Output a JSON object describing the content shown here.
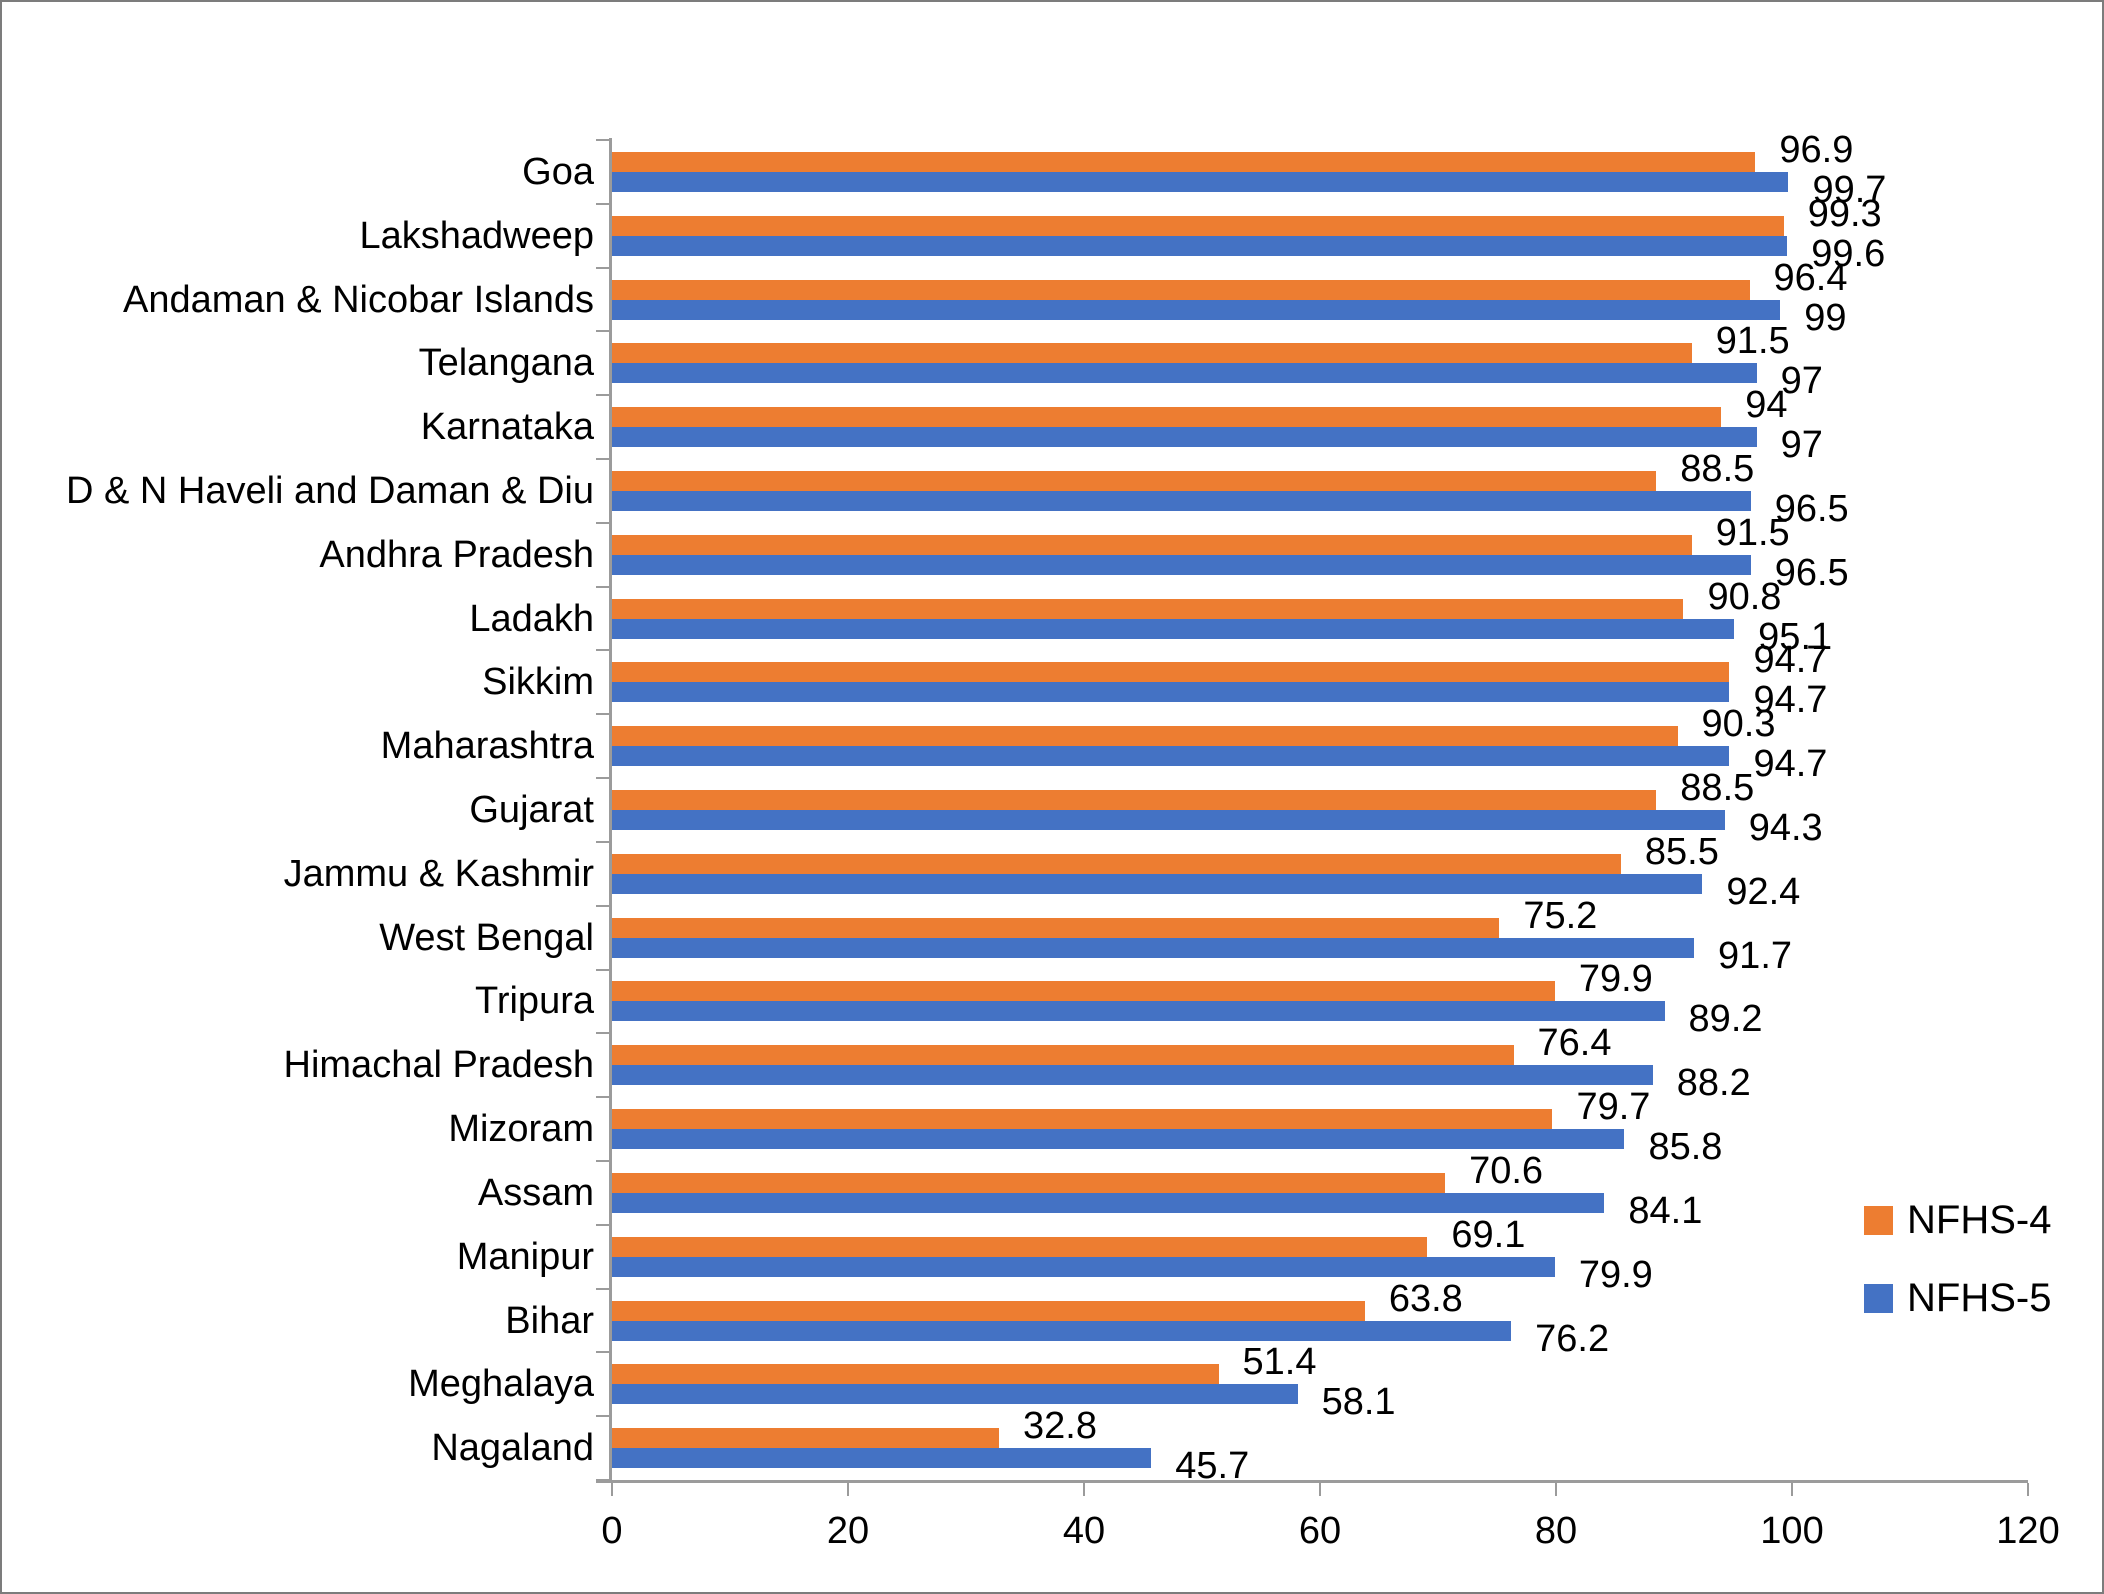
{
  "chart_data": {
    "type": "bar",
    "orientation": "horizontal",
    "title": "",
    "xlabel": "",
    "ylabel": "",
    "grid": false,
    "categories": [
      "Goa",
      "Lakshadweep",
      "Andaman & Nicobar Islands",
      "Telangana",
      "Karnataka",
      "D & N Haveli and Daman & Diu",
      "Andhra Pradesh",
      "Ladakh",
      "Sikkim",
      "Maharashtra",
      "Gujarat",
      "Jammu & Kashmir",
      "West Bengal",
      "Tripura",
      "Himachal Pradesh",
      "Mizoram",
      "Assam",
      "Manipur",
      "Bihar",
      "Meghalaya",
      "Nagaland"
    ],
    "series": [
      {
        "name": "NFHS-4",
        "color": "#ED7D31",
        "values": [
          96.9,
          99.3,
          96.4,
          91.5,
          94,
          88.5,
          91.5,
          90.8,
          94.7,
          90.3,
          88.5,
          85.5,
          75.2,
          79.9,
          76.4,
          79.7,
          70.6,
          69.1,
          63.8,
          51.4,
          32.8
        ]
      },
      {
        "name": "NFHS-5",
        "color": "#4472C4",
        "values": [
          99.7,
          99.6,
          99,
          97,
          97,
          96.5,
          96.5,
          95.1,
          94.7,
          94.7,
          94.3,
          92.4,
          91.7,
          89.2,
          88.2,
          85.8,
          84.1,
          79.9,
          76.2,
          58.1,
          45.7
        ]
      }
    ],
    "x_axis": {
      "min": 0,
      "max": 120,
      "tick_step": 20,
      "ticks": [
        0,
        20,
        40,
        60,
        80,
        100,
        120
      ]
    },
    "legend": {
      "position": "right",
      "entries": [
        "NFHS-4",
        "NFHS-5"
      ]
    }
  },
  "colors": {
    "axis": "#9B9B9B",
    "text": "#000000",
    "background": "#FFFFFF",
    "frame_border": "#7C7C7C"
  }
}
